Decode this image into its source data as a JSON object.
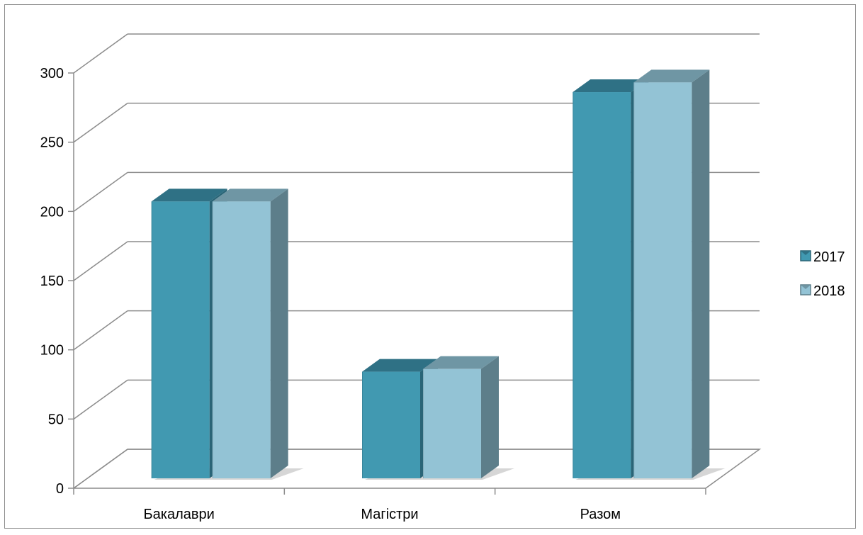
{
  "chart_data": {
    "type": "bar",
    "title": "",
    "xlabel": "",
    "ylabel": "",
    "categories": [
      "Бакалаври",
      "Магістри",
      "Разом"
    ],
    "series": [
      {
        "name": "2017",
        "values": [
          200,
          77,
          279
        ],
        "color": "#4199b1",
        "top_color": "#2f7185",
        "side_color": "#2a6577"
      },
      {
        "name": "2018",
        "values": [
          200,
          79,
          286
        ],
        "color": "#93c3d5",
        "top_color": "#6f96a4",
        "side_color": "#5d7e8a"
      }
    ],
    "ylim": [
      0,
      300
    ],
    "yticks": [
      0,
      50,
      100,
      150,
      200,
      250,
      300
    ],
    "grid": true,
    "three_d": true,
    "legend_position": "right"
  }
}
